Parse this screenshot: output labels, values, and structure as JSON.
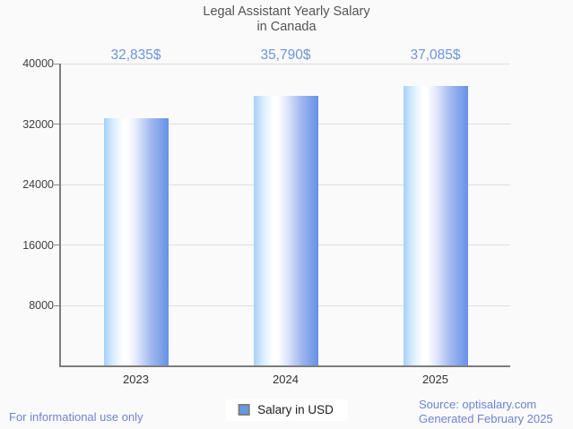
{
  "title": {
    "line1": "Legal Assistant Yearly Salary",
    "line2": "in Canada"
  },
  "chart_data": {
    "type": "bar",
    "title": "Legal Assistant Yearly Salary in Canada",
    "categories": [
      "2023",
      "2024",
      "2025"
    ],
    "series": [
      {
        "name": "Salary in USD",
        "values": [
          32835,
          35790,
          37085
        ]
      }
    ],
    "value_labels": [
      "32,835$",
      "35,790$",
      "37,085$"
    ],
    "xlabel": "",
    "ylabel": "",
    "ylim": [
      0,
      40000
    ],
    "yticks": [
      8000,
      16000,
      24000,
      32000,
      40000
    ],
    "grid": true,
    "legend_position": "bottom-center",
    "bar_gradient": [
      "#a6d1fb",
      "#ffffff",
      "#6591e6"
    ]
  },
  "legend": {
    "label": "Salary in USD",
    "swatch_fill": "#5f9de6",
    "swatch_border": "#7f7f7f"
  },
  "footer": {
    "left_note": "For informational use only",
    "source": "Source: optisalary.com",
    "generated": "Generated February 2025"
  },
  "colors": {
    "background": "#fafafa",
    "accent_blue": "#6c95db",
    "footer_blue": "#6f83d5",
    "title_gray": "#545454",
    "axis_gray": "#7e7e7e",
    "gridline": "#dedede",
    "legend_fill": "#5f9de6"
  }
}
